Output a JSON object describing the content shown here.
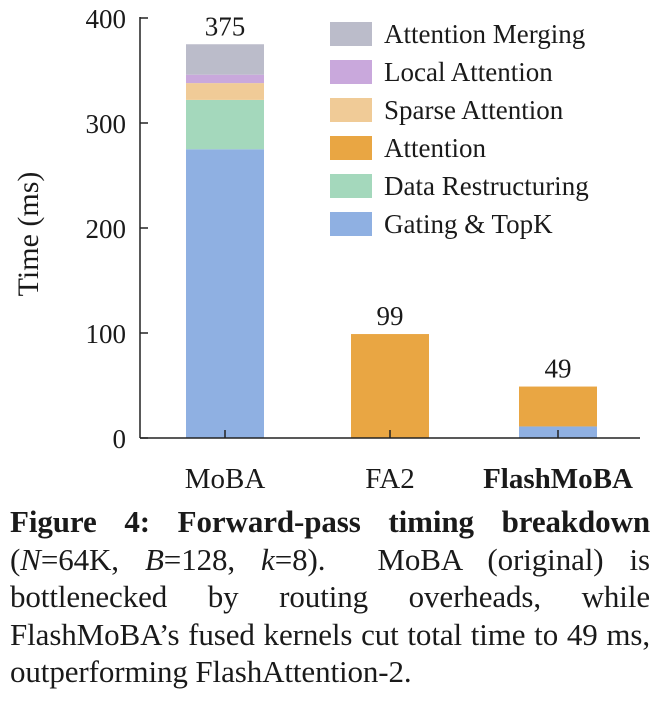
{
  "chart_data": {
    "type": "bar",
    "stacked": true,
    "categories": [
      "MoBA",
      "FA2",
      "FlashMoBA"
    ],
    "category_bold": [
      false,
      false,
      true
    ],
    "ylabel": "Time (ms)",
    "xlabel": "",
    "title": "",
    "ylim": [
      0,
      400
    ],
    "yticks": [
      0,
      100,
      200,
      300,
      400
    ],
    "totals": [
      375,
      99,
      49
    ],
    "series": [
      {
        "name": "Gating & TopK",
        "color": "#8fb0e2",
        "values": [
          275,
          0,
          11
        ]
      },
      {
        "name": "Data Restructuring",
        "color": "#a4d8bc",
        "values": [
          47,
          0,
          0
        ]
      },
      {
        "name": "Attention",
        "color": "#e9a643",
        "values": [
          0,
          99,
          38
        ]
      },
      {
        "name": "Sparse Attention",
        "color": "#f0cb97",
        "values": [
          16,
          0,
          0
        ]
      },
      {
        "name": "Local Attention",
        "color": "#c9a8dc",
        "values": [
          8,
          0,
          0
        ]
      },
      {
        "name": "Attention Merging",
        "color": "#bbbcca",
        "values": [
          29,
          0,
          0
        ]
      }
    ],
    "legend_order": [
      "Attention Merging",
      "Local Attention",
      "Sparse Attention",
      "Attention",
      "Data Restructuring",
      "Gating & TopK"
    ],
    "legend_position": "top-right",
    "grid": false
  },
  "caption": {
    "label": "Figure 4:",
    "title": "Forward-pass timing breakdown",
    "params": [
      {
        "sym": "N",
        "val": "64K"
      },
      {
        "sym": "B",
        "val": "128"
      },
      {
        "sym": "k",
        "val": "8"
      }
    ],
    "body": "MoBA (original) is bottlenecked by routing overheads, while FlashMoBA’s fused kernels cut total time to 49 ms, outperforming FlashAttention-2."
  }
}
